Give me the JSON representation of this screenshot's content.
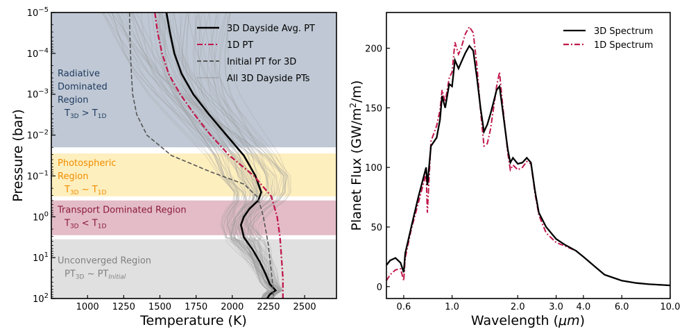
{
  "chart_data": [
    {
      "type": "line",
      "title": "",
      "xlabel": "Temperature (K)",
      "ylabel": "Pressure (bar)",
      "xlim": [
        750,
        2720
      ],
      "ylim_log10": [
        -5,
        2
      ],
      "y_inverted": true,
      "y_scale": "log",
      "xticks": [
        {
          "value": 1000,
          "label": "1000"
        },
        {
          "value": 1250,
          "label": "1250"
        },
        {
          "value": 1500,
          "label": "1500"
        },
        {
          "value": 1750,
          "label": "1750"
        },
        {
          "value": 2000,
          "label": "2000"
        },
        {
          "value": 2250,
          "label": "2250"
        },
        {
          "value": 2500,
          "label": "2500"
        }
      ],
      "yticks": [
        {
          "exp": -5,
          "label": "10",
          "sup": "−5"
        },
        {
          "exp": -4,
          "label": "10",
          "sup": "−4"
        },
        {
          "exp": -3,
          "label": "10",
          "sup": "−3"
        },
        {
          "exp": -2,
          "label": "10",
          "sup": "−2"
        },
        {
          "exp": -1,
          "label": "10",
          "sup": "−1"
        },
        {
          "exp": 0,
          "label": "10",
          "sup": "0"
        },
        {
          "exp": 1,
          "label": "10",
          "sup": "1"
        },
        {
          "exp": 2,
          "label": "10",
          "sup": "2"
        }
      ],
      "regions": [
        {
          "name": "radiative",
          "color": "#8a9bb0",
          "opacity": 0.55,
          "range_log10": [
            -5,
            -1.7
          ],
          "lines": [
            {
              "parts": [
                {
                  "t": "Radiative"
                }
              ]
            },
            {
              "parts": [
                {
                  "t": "Dominated"
                }
              ]
            },
            {
              "parts": [
                {
                  "t": "Region"
                }
              ]
            },
            {
              "parts": [
                {
                  "t": "T"
                },
                {
                  "t": "3D",
                  "sub": true
                },
                {
                  "t": " > T"
                },
                {
                  "t": "1D",
                  "sub": true
                }
              ]
            }
          ],
          "text_color": "#1f3a5f"
        },
        {
          "name": "photospheric",
          "color": "#fde9a8",
          "opacity": 0.75,
          "range_log10": [
            -1.55,
            -0.5
          ],
          "lines": [
            {
              "parts": [
                {
                  "t": "Photospheric"
                }
              ]
            },
            {
              "parts": [
                {
                  "t": "Region"
                }
              ]
            },
            {
              "parts": [
                {
                  "t": "T"
                },
                {
                  "t": "3D",
                  "sub": true
                },
                {
                  "t": " ~  T"
                },
                {
                  "t": "1D",
                  "sub": true
                }
              ]
            }
          ],
          "text_color": "#f08c00"
        },
        {
          "name": "transport",
          "color": "#d9a6b4",
          "opacity": 0.75,
          "range_log10": [
            -0.4,
            0.45
          ],
          "lines": [
            {
              "parts": [
                {
                  "t": "Transport Dominated Region"
                }
              ]
            },
            {
              "parts": [
                {
                  "t": "T"
                },
                {
                  "t": "3D",
                  "sub": true
                },
                {
                  "t": " < T"
                },
                {
                  "t": "1D",
                  "sub": true
                }
              ]
            }
          ],
          "text_color": "#8b1a3a"
        },
        {
          "name": "unconverged",
          "color": "#d6d6d6",
          "opacity": 0.75,
          "range_log10": [
            0.55,
            2
          ],
          "lines": [
            {
              "parts": [
                {
                  "t": "Unconverged Region"
                }
              ]
            },
            {
              "parts": [
                {
                  "t": "PT"
                },
                {
                  "t": "3D",
                  "sub": true
                },
                {
                  "t": " ~  PT"
                },
                {
                  "t": "Initial",
                  "sub": true,
                  "italic": true
                }
              ]
            }
          ],
          "text_color": "#808080"
        }
      ],
      "legend": {
        "position": "top-right",
        "entries": [
          {
            "label": "3D Dayside Avg. PT",
            "color": "#000000",
            "style": "solid"
          },
          {
            "label": "1D PT",
            "color": "#c0174a",
            "style": "dashdot"
          },
          {
            "label": "Initial PT for 3D",
            "color": "#555555",
            "style": "dashed"
          },
          {
            "label": "All 3D Dayside PTs",
            "color": "#999999",
            "style": "thin"
          }
        ]
      },
      "series": [
        {
          "name": "3D Dayside Avg. PT",
          "color": "#000000",
          "points": [
            [
              1545,
              -5
            ],
            [
              1570,
              -4.5
            ],
            [
              1600,
              -4
            ],
            [
              1650,
              -3.5
            ],
            [
              1730,
              -3
            ],
            [
              1840,
              -2.5
            ],
            [
              1960,
              -2
            ],
            [
              2080,
              -1.5
            ],
            [
              2160,
              -1.0
            ],
            [
              2200,
              -0.6
            ],
            [
              2180,
              -0.4
            ],
            [
              2120,
              -0.2
            ],
            [
              2080,
              0
            ],
            [
              2060,
              0.2
            ],
            [
              2080,
              0.5
            ],
            [
              2140,
              0.8
            ],
            [
              2190,
              1.1
            ],
            [
              2230,
              1.4
            ],
            [
              2260,
              1.65
            ],
            [
              2300,
              1.8
            ],
            [
              2260,
              1.9
            ],
            [
              2240,
              2
            ]
          ]
        },
        {
          "name": "1D PT",
          "color": "#c0174a",
          "points": [
            [
              1465,
              -5
            ],
            [
              1485,
              -4.5
            ],
            [
              1515,
              -4
            ],
            [
              1560,
              -3.5
            ],
            [
              1640,
              -3
            ],
            [
              1740,
              -2.5
            ],
            [
              1850,
              -2
            ],
            [
              1980,
              -1.5
            ],
            [
              2150,
              -1.0
            ],
            [
              2270,
              -0.5
            ],
            [
              2310,
              0
            ],
            [
              2330,
              0.5
            ],
            [
              2340,
              1
            ],
            [
              2350,
              1.5
            ],
            [
              2350,
              2
            ]
          ]
        },
        {
          "name": "Initial PT for 3D",
          "color": "#555555",
          "points": [
            [
              1290,
              -5
            ],
            [
              1292,
              -4.5
            ],
            [
              1297,
              -4
            ],
            [
              1303,
              -3.5
            ],
            [
              1312,
              -3
            ],
            [
              1340,
              -2.5
            ],
            [
              1410,
              -2
            ],
            [
              1580,
              -1.5
            ],
            [
              1850,
              -1.1
            ],
            [
              2080,
              -0.8
            ],
            [
              2170,
              -0.5
            ],
            [
              2200,
              -0.2
            ],
            [
              2215,
              0
            ],
            [
              2230,
              0.3
            ],
            [
              2250,
              0.7
            ],
            [
              2262,
              1.1
            ],
            [
              2275,
              1.5
            ],
            [
              2285,
              2
            ]
          ]
        }
      ]
    },
    {
      "type": "line",
      "title": "",
      "xlabel": "Wavelength (μm)",
      "ylabel": "Planet Flux (GW/m²/m)",
      "x_scale": "log",
      "xlim": [
        0.5,
        10.0
      ],
      "ylim": [
        -10,
        230
      ],
      "xticks": [
        {
          "value": 0.6,
          "label": "0.6"
        },
        {
          "value": 1.0,
          "label": "1.0"
        },
        {
          "value": 2.0,
          "label": "2.0"
        },
        {
          "value": 3.0,
          "label": "3.0"
        },
        {
          "value": 4.0,
          "label": "4.0"
        },
        {
          "value": 6.0,
          "label": "6.0"
        },
        {
          "value": 10.0,
          "label": "10.0"
        }
      ],
      "yticks": [
        {
          "value": 0,
          "label": "0"
        },
        {
          "value": 50,
          "label": "50"
        },
        {
          "value": 100,
          "label": "100"
        },
        {
          "value": 150,
          "label": "150"
        },
        {
          "value": 200,
          "label": "200"
        }
      ],
      "legend": {
        "position": "top-right",
        "entries": [
          {
            "label": "3D Spectrum",
            "color": "#000000",
            "style": "solid"
          },
          {
            "label": "1D Spectrum",
            "color": "#c0174a",
            "style": "dashdot"
          }
        ]
      },
      "series": [
        {
          "name": "3D Spectrum",
          "color": "#000000",
          "points": [
            [
              0.5,
              18
            ],
            [
              0.52,
              22
            ],
            [
              0.55,
              24
            ],
            [
              0.58,
              20
            ],
            [
              0.6,
              12
            ],
            [
              0.61,
              28
            ],
            [
              0.65,
              50
            ],
            [
              0.7,
              75
            ],
            [
              0.76,
              100
            ],
            [
              0.77,
              85
            ],
            [
              0.8,
              118
            ],
            [
              0.85,
              125
            ],
            [
              0.88,
              140
            ],
            [
              0.9,
              160
            ],
            [
              0.93,
              150
            ],
            [
              0.97,
              170
            ],
            [
              1.0,
              168
            ],
            [
              1.03,
              190
            ],
            [
              1.07,
              183
            ],
            [
              1.1,
              188
            ],
            [
              1.15,
              196
            ],
            [
              1.2,
              202
            ],
            [
              1.25,
              198
            ],
            [
              1.3,
              175
            ],
            [
              1.35,
              150
            ],
            [
              1.4,
              130
            ],
            [
              1.45,
              136
            ],
            [
              1.5,
              145
            ],
            [
              1.55,
              155
            ],
            [
              1.6,
              165
            ],
            [
              1.65,
              168
            ],
            [
              1.7,
              150
            ],
            [
              1.8,
              115
            ],
            [
              1.85,
              104
            ],
            [
              1.9,
              108
            ],
            [
              2.0,
              103
            ],
            [
              2.1,
              104
            ],
            [
              2.2,
              108
            ],
            [
              2.3,
              104
            ],
            [
              2.4,
              80
            ],
            [
              2.5,
              62
            ],
            [
              2.7,
              50
            ],
            [
              3.0,
              40
            ],
            [
              3.3,
              35
            ],
            [
              3.7,
              30
            ],
            [
              4.0,
              25
            ],
            [
              4.5,
              17
            ],
            [
              5.0,
              10
            ],
            [
              6.0,
              5
            ],
            [
              7.0,
              3
            ],
            [
              8.0,
              2
            ],
            [
              10.0,
              1
            ]
          ]
        },
        {
          "name": "1D Spectrum",
          "color": "#c0174a",
          "points": [
            [
              0.5,
              5
            ],
            [
              0.52,
              10
            ],
            [
              0.55,
              14
            ],
            [
              0.58,
              15
            ],
            [
              0.6,
              5
            ],
            [
              0.61,
              24
            ],
            [
              0.65,
              48
            ],
            [
              0.7,
              70
            ],
            [
              0.76,
              95
            ],
            [
              0.77,
              62
            ],
            [
              0.8,
              122
            ],
            [
              0.85,
              135
            ],
            [
              0.88,
              148
            ],
            [
              0.9,
              165
            ],
            [
              0.93,
              155
            ],
            [
              0.97,
              175
            ],
            [
              1.0,
              180
            ],
            [
              1.03,
              205
            ],
            [
              1.07,
              195
            ],
            [
              1.1,
              200
            ],
            [
              1.15,
              212
            ],
            [
              1.2,
              218
            ],
            [
              1.25,
              213
            ],
            [
              1.3,
              185
            ],
            [
              1.35,
              148
            ],
            [
              1.4,
              118
            ],
            [
              1.45,
              120
            ],
            [
              1.5,
              132
            ],
            [
              1.55,
              150
            ],
            [
              1.6,
              168
            ],
            [
              1.65,
              180
            ],
            [
              1.7,
              155
            ],
            [
              1.8,
              112
            ],
            [
              1.85,
              98
            ],
            [
              1.9,
              102
            ],
            [
              2.0,
              98
            ],
            [
              2.1,
              100
            ],
            [
              2.2,
              105
            ],
            [
              2.3,
              103
            ],
            [
              2.4,
              78
            ],
            [
              2.5,
              60
            ],
            [
              2.7,
              45
            ],
            [
              3.0,
              37
            ],
            [
              3.3,
              34
            ],
            [
              3.7,
              30
            ],
            [
              4.0,
              25
            ],
            [
              4.5,
              17
            ],
            [
              5.0,
              10
            ],
            [
              6.0,
              5
            ],
            [
              7.0,
              3
            ],
            [
              8.0,
              2
            ],
            [
              10.0,
              1
            ]
          ]
        }
      ]
    }
  ]
}
